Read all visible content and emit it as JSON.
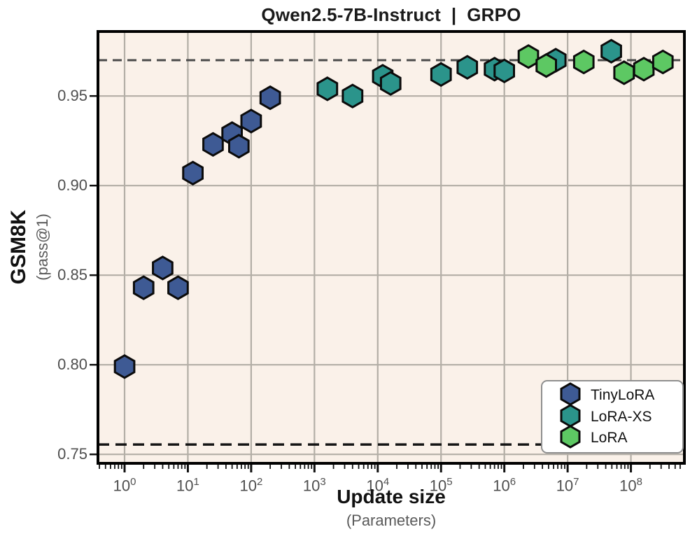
{
  "chart_data": {
    "type": "scatter",
    "title": "Qwen2.5-7B-Instruct  |  GRPO",
    "xlabel": "Update size",
    "xlabel_sub": "(Parameters)",
    "ylabel": "GSM8K",
    "ylabel_sub": "(pass@1)",
    "x_scale": "log10",
    "x_tick_exponents": [
      0,
      1,
      2,
      3,
      4,
      5,
      6,
      7,
      8
    ],
    "y_ticks": [
      0.75,
      0.8,
      0.85,
      0.9,
      0.95
    ],
    "xlim": [
      0.38,
      700000000
    ],
    "ylim": [
      0.745,
      0.986
    ],
    "grid": true,
    "marker": "hexagon",
    "background_color": "#faf1e9",
    "grid_color": "#b3aea6",
    "reference_lines": [
      {
        "y": 0.97,
        "color": "#4a4a4a",
        "dash": "13 8",
        "width": 3
      },
      {
        "y": 0.7555,
        "color": "#141414",
        "dash": "16 9",
        "width": 3.4
      }
    ],
    "series": [
      {
        "name": "TinyLoRA",
        "color": "#3e5a94",
        "points": [
          [
            1,
            0.799
          ],
          [
            2,
            0.843
          ],
          [
            4,
            0.854
          ],
          [
            7,
            0.843
          ],
          [
            12,
            0.907
          ],
          [
            25,
            0.923
          ],
          [
            50,
            0.929
          ],
          [
            64,
            0.922
          ],
          [
            100,
            0.936
          ],
          [
            200,
            0.949
          ]
        ]
      },
      {
        "name": "LoRA-XS",
        "color": "#2b948b",
        "points": [
          [
            1600,
            0.954
          ],
          [
            4000,
            0.95
          ],
          [
            12000,
            0.961
          ],
          [
            16000,
            0.957
          ],
          [
            100000,
            0.962
          ],
          [
            260000,
            0.966
          ],
          [
            700000,
            0.965
          ],
          [
            1000000,
            0.964
          ],
          [
            6500000,
            0.97
          ],
          [
            49000000,
            0.975
          ]
        ]
      },
      {
        "name": "LoRA",
        "color": "#5dc863",
        "points": [
          [
            2400000,
            0.972
          ],
          [
            4600000,
            0.967
          ],
          [
            18000000,
            0.969
          ],
          [
            78000000,
            0.963
          ],
          [
            160000000,
            0.965
          ],
          [
            320000000,
            0.969
          ]
        ]
      }
    ],
    "legend": {
      "position": "lower-right"
    }
  }
}
